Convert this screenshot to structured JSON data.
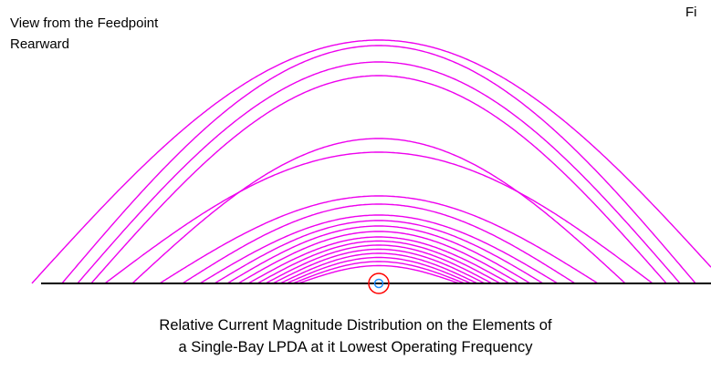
{
  "view_label": {
    "line1": "View from the Feedpoint",
    "line2": "Rearward"
  },
  "fig_label": "Fi",
  "caption": {
    "line1": "Relative Current Magnitude Distribution on the Elements of",
    "line2": "a Single-Bay LPDA at it Lowest Operating Frequency"
  },
  "colors": {
    "curve": "#ee00ee",
    "baseline": "#000000",
    "feed_ring": "#ff0000",
    "feed_dot": "#1e90ff"
  },
  "elements": [
    {
      "half_length": 380,
      "peak": 0.89
    },
    {
      "half_length": 347,
      "peak": 0.87
    },
    {
      "half_length": 330,
      "peak": 0.81
    },
    {
      "half_length": 315,
      "peak": 0.76
    },
    {
      "half_length": 300,
      "peak": 0.48
    },
    {
      "half_length": 270,
      "peak": 0.53
    },
    {
      "half_length": 240,
      "peak": 0.32
    },
    {
      "half_length": 215,
      "peak": 0.29
    },
    {
      "half_length": 196,
      "peak": 0.25
    },
    {
      "half_length": 180,
      "peak": 0.23
    },
    {
      "half_length": 166,
      "peak": 0.21
    },
    {
      "half_length": 154,
      "peak": 0.19
    },
    {
      "half_length": 143,
      "peak": 0.17
    },
    {
      "half_length": 133,
      "peak": 0.155
    },
    {
      "half_length": 124,
      "peak": 0.14
    },
    {
      "half_length": 116,
      "peak": 0.125
    },
    {
      "half_length": 108,
      "peak": 0.11
    },
    {
      "half_length": 101,
      "peak": 0.095
    },
    {
      "half_length": 94,
      "peak": 0.08
    },
    {
      "half_length": 88,
      "peak": 0.065
    }
  ]
}
